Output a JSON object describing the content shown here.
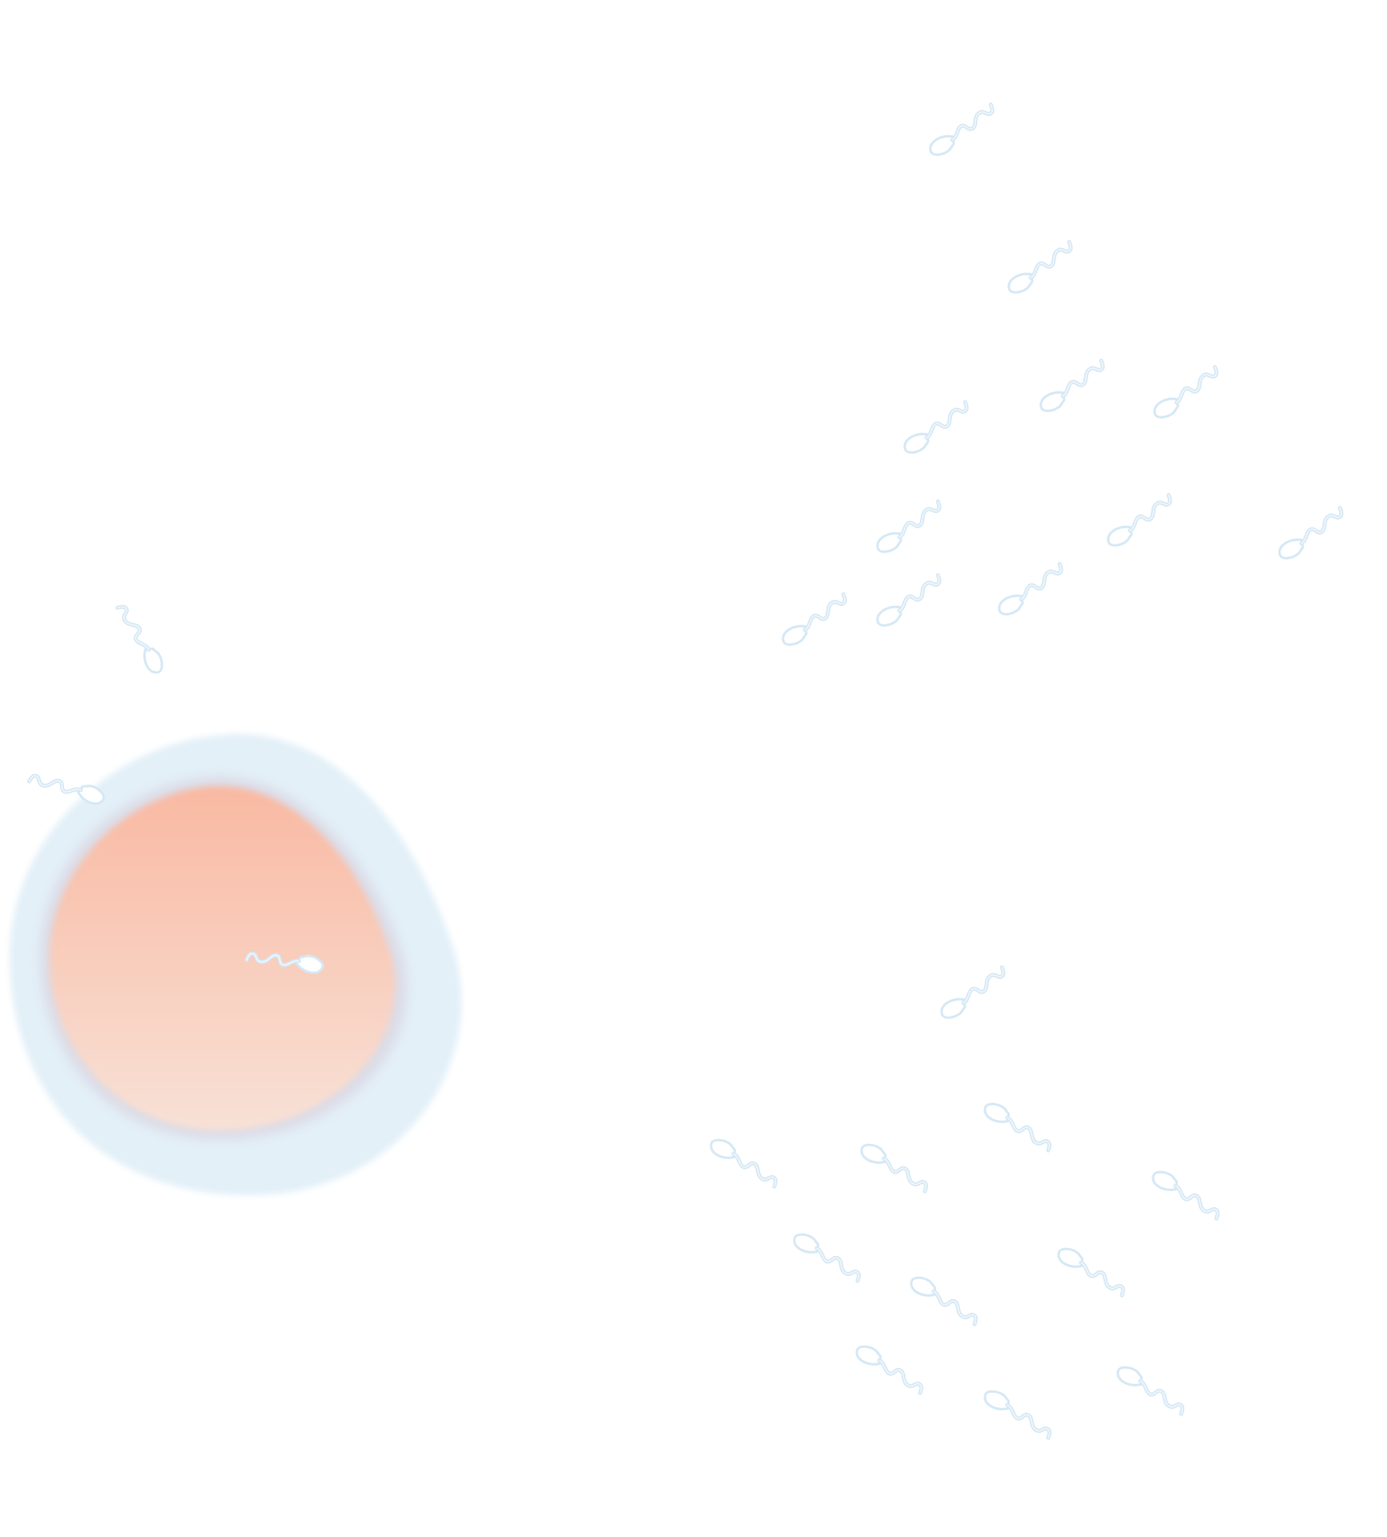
{
  "colors": {
    "background": "#ffffff",
    "zona_pellucida": "#e3f0f8",
    "zona_edge": "#d6e6f2",
    "ooplasm_top": "#f9b9a2",
    "ooplasm_bottom": "#f8e1d6",
    "sperm_outline": "#d7e9f5",
    "sperm_fill_light": "#ffffff",
    "sperm_stroke_inner": "#e9f3fa"
  },
  "icons": {
    "egg": "egg-cell-icon",
    "sperm": "sperm-cell-icon"
  }
}
